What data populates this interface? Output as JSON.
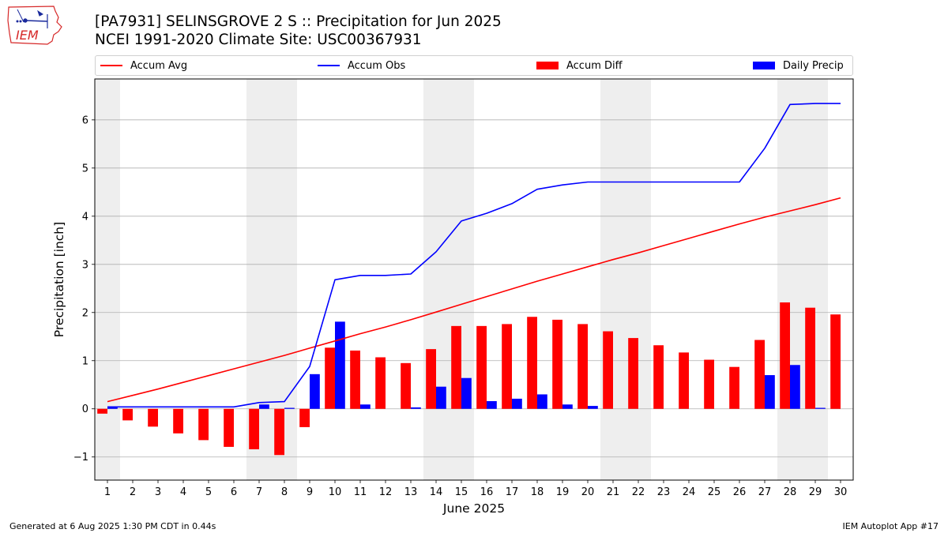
{
  "header": {
    "title": "[PA7931] SELINSGROVE 2 S :: Precipitation for Jun 2025",
    "subtitle": "NCEI 1991-2020 Climate Site: USC00367931"
  },
  "logo": {
    "text": "IEM",
    "color": "#d62828"
  },
  "legend": {
    "accum_avg": "Accum Avg",
    "accum_obs": "Accum Obs",
    "accum_diff": "Accum Diff",
    "daily_precip": "Daily Precip"
  },
  "footer": {
    "left": "Generated at 6 Aug 2025 1:30 PM CDT in 0.44s",
    "right": "IEM Autoplot App #17"
  },
  "colors": {
    "avg": "#ff0000",
    "obs": "#0000ff",
    "diff": "#ff0000",
    "daily": "#0000ff",
    "weekend_band": "#eeeeee",
    "grid": "#b0b0b0"
  },
  "chart_data": {
    "type": "bar",
    "xlabel": "June 2025",
    "ylabel": "Precipitation [inch]",
    "ylim": [
      -1.48,
      6.85
    ],
    "yticks": [
      -1,
      0,
      1,
      2,
      3,
      4,
      5,
      6
    ],
    "grid": true,
    "legend_position": "top",
    "x": [
      1,
      2,
      3,
      4,
      5,
      6,
      7,
      8,
      9,
      10,
      11,
      12,
      13,
      14,
      15,
      16,
      17,
      18,
      19,
      20,
      21,
      22,
      23,
      24,
      25,
      26,
      27,
      28,
      29,
      30
    ],
    "weekend_days": [
      1,
      7,
      8,
      14,
      15,
      21,
      22,
      28,
      29
    ],
    "series": [
      {
        "name": "Accum Avg",
        "kind": "line",
        "values": [
          0.15,
          0.28,
          0.41,
          0.55,
          0.69,
          0.83,
          0.97,
          1.11,
          1.26,
          1.41,
          1.56,
          1.7,
          1.85,
          2.01,
          2.17,
          2.33,
          2.49,
          2.65,
          2.8,
          2.95,
          3.1,
          3.24,
          3.39,
          3.54,
          3.69,
          3.84,
          3.98,
          4.11,
          4.24,
          4.38
        ]
      },
      {
        "name": "Accum Obs",
        "kind": "line",
        "values": [
          0.04,
          0.04,
          0.04,
          0.04,
          0.04,
          0.04,
          0.13,
          0.15,
          0.88,
          2.68,
          2.77,
          2.77,
          2.8,
          3.26,
          3.9,
          4.06,
          4.26,
          4.56,
          4.65,
          4.71,
          4.71,
          4.71,
          4.71,
          4.71,
          4.71,
          4.71,
          5.41,
          6.32,
          6.34,
          6.34
        ]
      },
      {
        "name": "Accum Diff",
        "kind": "bar",
        "values": [
          -0.1,
          -0.24,
          -0.37,
          -0.51,
          -0.65,
          -0.79,
          -0.84,
          -0.96,
          -0.38,
          1.27,
          1.21,
          1.07,
          0.95,
          1.24,
          1.72,
          1.72,
          1.76,
          1.91,
          1.85,
          1.76,
          1.61,
          1.47,
          1.32,
          1.17,
          1.02,
          0.87,
          1.43,
          2.21,
          2.1,
          1.96
        ]
      },
      {
        "name": "Daily Precip",
        "kind": "bar",
        "values": [
          0.04,
          0.0,
          0.0,
          0.0,
          0.0,
          0.0,
          0.09,
          0.02,
          0.72,
          1.81,
          0.09,
          0.0,
          0.03,
          0.46,
          0.64,
          0.16,
          0.21,
          0.3,
          0.09,
          0.06,
          0.0,
          0.0,
          0.0,
          0.0,
          0.0,
          0.0,
          0.7,
          0.91,
          0.02,
          0.0
        ]
      }
    ]
  }
}
